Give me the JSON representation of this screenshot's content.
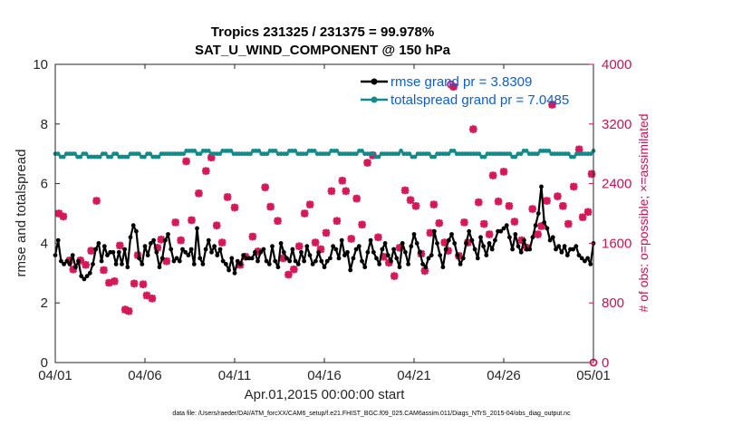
{
  "chart_data": {
    "type": "line",
    "title_line1": "Tropics 231325 / 231375 = 99.978%",
    "title_line2": "SAT_U_WIND_COMPONENT @ 150 hPa",
    "xlabel": "Apr.01,2015 00:00:00 start",
    "ylabel": "rmse and totalspread",
    "ylabel_right": "# of obs: o=possible; ×=assimilated",
    "footnote": "data file: /Users/raeder/DAI/ATM_forcXX/CAM6_setup/f.e21.FHIST_BGC.f09_025.CAM6assim.011/Diags_NTrS_2015-04/obs_diag_output.nc",
    "xlim": [
      0,
      30
    ],
    "ylim": [
      0,
      10
    ],
    "ylim_right": [
      0,
      4000
    ],
    "x_ticks": [
      0,
      5,
      10,
      15,
      20,
      25,
      30
    ],
    "x_tick_labels": [
      "04/01",
      "04/06",
      "04/11",
      "04/16",
      "04/21",
      "04/26",
      "05/01"
    ],
    "y_ticks": [
      "0",
      "2",
      "4",
      "6",
      "8",
      "10"
    ],
    "y_ticks_right": [
      "0",
      "800",
      "1600",
      "2400",
      "3200",
      "4000"
    ],
    "legend": [
      "rmse grand pr = 3.8309",
      "totalspread grand pr = 7.0485"
    ],
    "colors": {
      "rmse": "#000000",
      "totalspread": "#128a8a",
      "obs": "#d6185a",
      "legend_text": "#0b5ed7",
      "right_axis": "#cc1155"
    },
    "series": [
      {
        "name": "rmse",
        "values": [
          3.6,
          4.1,
          3.4,
          3.3,
          3.4,
          3.3,
          3.6,
          3.2,
          3.4,
          2.9,
          2.8,
          2.9,
          3.0,
          3.3,
          3.8,
          4.0,
          3.4,
          3.9,
          3.6,
          3.7,
          3.7,
          3.3,
          3.7,
          3.3,
          3.8,
          3.2,
          4.2,
          4.6,
          4.4,
          3.5,
          3.3,
          3.9,
          3.6,
          4.0,
          4.1,
          3.7,
          3.2,
          3.5,
          4.1,
          4.3,
          3.8,
          3.4,
          3.5,
          3.4,
          3.8,
          3.7,
          3.6,
          3.8,
          3.3,
          4.5,
          3.5,
          3.3,
          3.8,
          4.1,
          3.7,
          3.9,
          3.6,
          3.8,
          3.4,
          3.3,
          3.1,
          3.5,
          3.0,
          3.4,
          3.3,
          3.6,
          3.5,
          3.5,
          3.5,
          3.7,
          3.4,
          3.7,
          3.8,
          3.4,
          3.3,
          3.9,
          3.4,
          3.2,
          4.0,
          3.7,
          3.5,
          3.4,
          3.8,
          3.4,
          3.3,
          3.7,
          3.4,
          3.9,
          3.6,
          3.3,
          3.4,
          3.7,
          3.4,
          3.2,
          3.4,
          3.5,
          3.9,
          3.8,
          3.5,
          4.1,
          3.6,
          3.7,
          3.1,
          3.5,
          3.8,
          3.9,
          3.4,
          3.2,
          3.7,
          4.1,
          3.7,
          3.5,
          3.3,
          3.8,
          4.0,
          3.6,
          3.4,
          3.8,
          3.5,
          3.2,
          4.0,
          3.7,
          3.3,
          3.9,
          4.3,
          4.0,
          3.7,
          3.3,
          3.2,
          3.5,
          3.6,
          4.4,
          4.0,
          3.6,
          3.2,
          3.8,
          4.1,
          4.3,
          4.0,
          3.6,
          3.3,
          3.5,
          4.0,
          4.4,
          4.1,
          3.8,
          3.5,
          4.2,
          3.9,
          3.6,
          4.0,
          3.8,
          4.1,
          4.4,
          4.4,
          4.5,
          4.6,
          4.2,
          3.8,
          4.3,
          3.9,
          3.7,
          4.1,
          3.8,
          3.8,
          4.2,
          4.6,
          5.0,
          5.9,
          4.7,
          4.5,
          4.1,
          4.2,
          3.8,
          3.9,
          3.7,
          3.9,
          3.6,
          3.8,
          3.8,
          3.9,
          3.6,
          3.5,
          3.4,
          3.5,
          3.3,
          4.0
        ]
      },
      {
        "name": "totalspread",
        "values": [
          7.0,
          7.0,
          6.9,
          6.9,
          7.0,
          7.0,
          7.0,
          7.0,
          6.9,
          6.9,
          7.0,
          7.0,
          6.9,
          6.9,
          6.9,
          6.9,
          6.9,
          7.0,
          7.0,
          6.9,
          6.9,
          7.0,
          7.0,
          6.9,
          6.9,
          6.9,
          6.9,
          7.0,
          7.0,
          7.0,
          7.0,
          6.9,
          6.9,
          7.0,
          7.0,
          6.9,
          6.9,
          6.9,
          7.0,
          7.0,
          7.0,
          7.0,
          7.0,
          7.0,
          7.0,
          7.0,
          7.0,
          7.1,
          7.1,
          7.1,
          7.1,
          7.0,
          7.0,
          7.1,
          7.1,
          7.1,
          7.0,
          7.0,
          7.0,
          7.0,
          7.1,
          7.1,
          7.1,
          7.1,
          7.0,
          7.0,
          7.0,
          7.0,
          7.0,
          7.0,
          7.0,
          7.1,
          7.1,
          7.1,
          7.0,
          7.0,
          7.0,
          7.1,
          7.1,
          7.1,
          7.0,
          7.0,
          7.0,
          7.0,
          7.1,
          7.1,
          7.1,
          7.0,
          7.0,
          7.0,
          7.0,
          7.1,
          7.1,
          7.1,
          7.0,
          7.0,
          7.0,
          7.0,
          7.0,
          7.1,
          7.1,
          7.1,
          7.0,
          7.0,
          7.0,
          7.0,
          7.0,
          7.0,
          7.0,
          7.1,
          7.1,
          7.0,
          7.0,
          7.0,
          7.0,
          6.9,
          6.9,
          7.0,
          7.0,
          7.0,
          7.0,
          7.0,
          7.0,
          7.0,
          7.1,
          7.0,
          7.0,
          7.0,
          6.9,
          6.9,
          7.0,
          7.0,
          7.0,
          7.0,
          7.0,
          6.9,
          6.9,
          7.0,
          7.0,
          7.0,
          7.0,
          7.0,
          7.1,
          7.1,
          7.0,
          7.0,
          7.0,
          7.0,
          7.0,
          7.0,
          7.0,
          7.0,
          7.0,
          6.9,
          6.9,
          7.0,
          7.0,
          7.0,
          7.0,
          7.0,
          7.0,
          7.0,
          7.0,
          7.0,
          6.9,
          6.9,
          7.0,
          7.0,
          7.1,
          7.1,
          7.0,
          7.0,
          7.0,
          7.0,
          7.1,
          7.1,
          7.1,
          7.1,
          7.0,
          7.0,
          7.0,
          7.0,
          7.0,
          7.0,
          7.0,
          6.9,
          6.9,
          7.0,
          7.0,
          7.0,
          7.0,
          7.0,
          7.0,
          7.1
        ]
      }
    ],
    "obs_count": [
      {
        "x": 0.2,
        "y": 2000
      },
      {
        "x": 0.45,
        "y": 1960
      },
      {
        "x": 0.8,
        "y": 1370
      },
      {
        "x": 1.0,
        "y": 1250
      },
      {
        "x": 1.4,
        "y": 1370
      },
      {
        "x": 1.7,
        "y": 1310
      },
      {
        "x": 2.0,
        "y": 1500
      },
      {
        "x": 2.3,
        "y": 2170
      },
      {
        "x": 2.7,
        "y": 1240
      },
      {
        "x": 3.0,
        "y": 1070
      },
      {
        "x": 3.3,
        "y": 1090
      },
      {
        "x": 3.6,
        "y": 1570
      },
      {
        "x": 3.9,
        "y": 710
      },
      {
        "x": 4.1,
        "y": 690
      },
      {
        "x": 4.4,
        "y": 1060
      },
      {
        "x": 4.6,
        "y": 1440
      },
      {
        "x": 4.9,
        "y": 1050
      },
      {
        "x": 5.1,
        "y": 900
      },
      {
        "x": 5.4,
        "y": 860
      },
      {
        "x": 5.7,
        "y": 1540
      },
      {
        "x": 5.9,
        "y": 1650
      },
      {
        "x": 6.2,
        "y": 1360
      },
      {
        "x": 6.7,
        "y": 1880
      },
      {
        "x": 7.0,
        "y": 1640
      },
      {
        "x": 7.3,
        "y": 2700
      },
      {
        "x": 7.6,
        "y": 1910
      },
      {
        "x": 8.0,
        "y": 2270
      },
      {
        "x": 8.4,
        "y": 2570
      },
      {
        "x": 8.7,
        "y": 2750
      },
      {
        "x": 9.0,
        "y": 1840
      },
      {
        "x": 9.3,
        "y": 1610
      },
      {
        "x": 9.6,
        "y": 2220
      },
      {
        "x": 10.0,
        "y": 2080
      },
      {
        "x": 10.3,
        "y": 1310
      },
      {
        "x": 10.6,
        "y": 1420
      },
      {
        "x": 11.0,
        "y": 1690
      },
      {
        "x": 11.3,
        "y": 1490
      },
      {
        "x": 11.7,
        "y": 2350
      },
      {
        "x": 12.0,
        "y": 2090
      },
      {
        "x": 12.4,
        "y": 1900
      },
      {
        "x": 12.7,
        "y": 1400
      },
      {
        "x": 13.0,
        "y": 1180
      },
      {
        "x": 13.3,
        "y": 1250
      },
      {
        "x": 13.6,
        "y": 1560
      },
      {
        "x": 13.9,
        "y": 2000
      },
      {
        "x": 14.2,
        "y": 2120
      },
      {
        "x": 14.5,
        "y": 1610
      },
      {
        "x": 14.8,
        "y": 1520
      },
      {
        "x": 15.1,
        "y": 1740
      },
      {
        "x": 15.4,
        "y": 2300
      },
      {
        "x": 15.7,
        "y": 1900
      },
      {
        "x": 16.0,
        "y": 2440
      },
      {
        "x": 16.2,
        "y": 2300
      },
      {
        "x": 16.5,
        "y": 1660
      },
      {
        "x": 16.8,
        "y": 2200
      },
      {
        "x": 17.1,
        "y": 1850
      },
      {
        "x": 17.4,
        "y": 2680
      },
      {
        "x": 17.7,
        "y": 2780
      },
      {
        "x": 18.0,
        "y": 1680
      },
      {
        "x": 18.3,
        "y": 1420
      },
      {
        "x": 18.6,
        "y": 1340
      },
      {
        "x": 18.9,
        "y": 1160
      },
      {
        "x": 19.2,
        "y": 1540
      },
      {
        "x": 19.5,
        "y": 2310
      },
      {
        "x": 19.8,
        "y": 2180
      },
      {
        "x": 20.1,
        "y": 2100
      },
      {
        "x": 20.4,
        "y": 1460
      },
      {
        "x": 20.6,
        "y": 1230
      },
      {
        "x": 20.9,
        "y": 1740
      },
      {
        "x": 21.1,
        "y": 2120
      },
      {
        "x": 21.4,
        "y": 1870
      },
      {
        "x": 21.7,
        "y": 1610
      },
      {
        "x": 21.9,
        "y": 1500
      },
      {
        "x": 22.2,
        "y": 3700
      },
      {
        "x": 22.5,
        "y": 1430
      },
      {
        "x": 22.8,
        "y": 1880
      },
      {
        "x": 23.0,
        "y": 1610
      },
      {
        "x": 23.3,
        "y": 3130
      },
      {
        "x": 23.6,
        "y": 2150
      },
      {
        "x": 23.9,
        "y": 1860
      },
      {
        "x": 24.2,
        "y": 1720
      },
      {
        "x": 24.4,
        "y": 2510
      },
      {
        "x": 24.7,
        "y": 2160
      },
      {
        "x": 25.0,
        "y": 2560
      },
      {
        "x": 25.3,
        "y": 2100
      },
      {
        "x": 25.6,
        "y": 1890
      },
      {
        "x": 26.0,
        "y": 1640
      },
      {
        "x": 26.3,
        "y": 1540
      },
      {
        "x": 26.6,
        "y": 2060
      },
      {
        "x": 26.9,
        "y": 1720
      },
      {
        "x": 27.1,
        "y": 1830
      },
      {
        "x": 27.4,
        "y": 2170
      },
      {
        "x": 27.7,
        "y": 3460
      },
      {
        "x": 28.0,
        "y": 2230
      },
      {
        "x": 28.3,
        "y": 2100
      },
      {
        "x": 28.6,
        "y": 1860
      },
      {
        "x": 28.9,
        "y": 2360
      },
      {
        "x": 29.2,
        "y": 2860
      },
      {
        "x": 29.4,
        "y": 1950
      },
      {
        "x": 29.7,
        "y": 2020
      },
      {
        "x": 29.9,
        "y": 2530
      }
    ],
    "obs_possible": [
      {
        "x": 22.05,
        "y": 3730
      },
      {
        "x": 30.0,
        "y": 0
      }
    ]
  }
}
